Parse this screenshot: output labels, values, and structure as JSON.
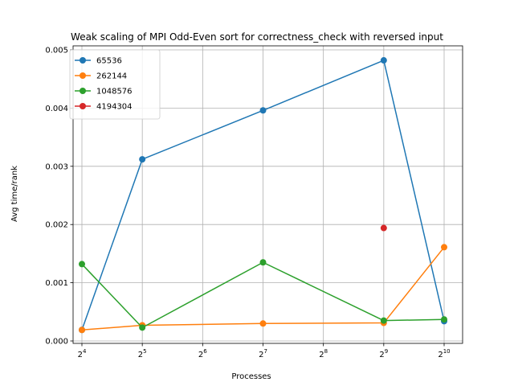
{
  "chart_data": {
    "type": "line",
    "title": "Weak scaling of MPI Odd-Even sort for correctness_check with reversed input",
    "xlabel": "Processes",
    "ylabel": "Avg time/rank",
    "x_scale": "log2",
    "x_ticks": [
      {
        "value": 16,
        "base": "2",
        "exp": "4"
      },
      {
        "value": 32,
        "base": "2",
        "exp": "5"
      },
      {
        "value": 64,
        "base": "2",
        "exp": "6"
      },
      {
        "value": 128,
        "base": "2",
        "exp": "7"
      },
      {
        "value": 256,
        "base": "2",
        "exp": "8"
      },
      {
        "value": 512,
        "base": "2",
        "exp": "9"
      },
      {
        "value": 1024,
        "base": "2",
        "exp": "10"
      }
    ],
    "y_ticks": [
      "0.000",
      "0.001",
      "0.002",
      "0.003",
      "0.004",
      "0.005"
    ],
    "ylim": [
      0,
      0.005
    ],
    "grid": true,
    "legend_position": "top-left",
    "series": [
      {
        "name": "65536",
        "color": "#1f77b4",
        "x": [
          16,
          32,
          128,
          512,
          1024
        ],
        "y": [
          0.00019,
          0.00312,
          0.00396,
          0.00482,
          0.00034
        ]
      },
      {
        "name": "262144",
        "color": "#ff7f0e",
        "x": [
          16,
          32,
          128,
          512,
          1024
        ],
        "y": [
          0.00019,
          0.00027,
          0.0003,
          0.00031,
          0.00161
        ]
      },
      {
        "name": "1048576",
        "color": "#2ca02c",
        "x": [
          16,
          32,
          128,
          512,
          1024
        ],
        "y": [
          0.00132,
          0.00023,
          0.00135,
          0.00035,
          0.00037
        ]
      },
      {
        "name": "4194304",
        "color": "#d62728",
        "x": [
          512
        ],
        "y": [
          0.00194
        ]
      }
    ]
  }
}
